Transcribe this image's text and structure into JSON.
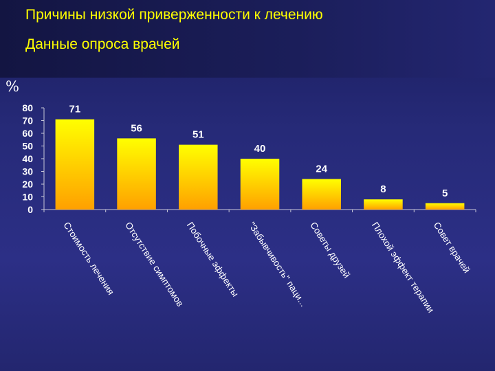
{
  "slide": {
    "title": "Причины низкой приверженности к лечению",
    "subtitle": "Данные опроса врачей",
    "unit_label": "%"
  },
  "colors": {
    "title": "#ffff00",
    "bar_top": "#ffff00",
    "bar_bottom": "#ffa000",
    "text": "#ffffff"
  },
  "chart_data": {
    "type": "bar",
    "categories": [
      "Стоимость лечения",
      "Отсутствие симптомов",
      "Побочные эффекты",
      "\"Забывчивость\" паци...",
      "Советы друзей",
      "Плохой эффект терапии",
      "Совет врачей"
    ],
    "values": [
      71,
      56,
      51,
      40,
      24,
      8,
      5
    ],
    "ylabel": "%",
    "ylim": [
      0,
      80
    ],
    "yticks": [
      0,
      10,
      20,
      30,
      40,
      50,
      60,
      70,
      80
    ],
    "grid": false,
    "legend": "none",
    "data_labels": true
  }
}
